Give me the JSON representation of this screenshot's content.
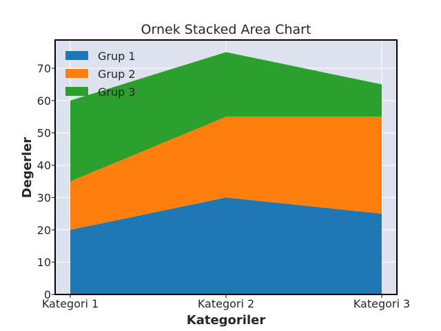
{
  "chart_data": {
    "type": "area",
    "stacked": true,
    "title": "Ornek Stacked Area Chart",
    "xlabel": "Kategoriler",
    "ylabel": "Degerler",
    "categories": [
      "Kategori 1",
      "Kategori 2",
      "Kategori 3"
    ],
    "series": [
      {
        "name": "Grup 1",
        "values": [
          20,
          30,
          25
        ],
        "color": "#1f77b4"
      },
      {
        "name": "Grup 2",
        "values": [
          15,
          25,
          30
        ],
        "color": "#ff7f0e"
      },
      {
        "name": "Grup 3",
        "values": [
          25,
          20,
          10
        ],
        "color": "#2ca02c"
      }
    ],
    "ylim": [
      0,
      78.75
    ],
    "yticks": [
      0,
      10,
      20,
      30,
      40,
      50,
      60,
      70
    ],
    "grid": true,
    "legend_position": "top-left",
    "plot_background": "#dde2ee"
  }
}
